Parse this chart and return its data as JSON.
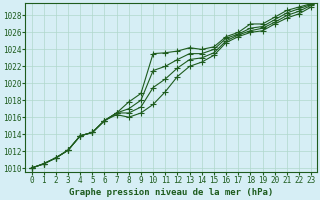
{
  "xlabel": "Graphe pression niveau de la mer (hPa)",
  "xlim": [
    -0.5,
    23.5
  ],
  "ylim": [
    1009.5,
    1029.5
  ],
  "yticks": [
    1010,
    1012,
    1014,
    1016,
    1018,
    1020,
    1022,
    1024,
    1026,
    1028
  ],
  "xticks": [
    0,
    1,
    2,
    3,
    4,
    5,
    6,
    7,
    8,
    9,
    10,
    11,
    12,
    13,
    14,
    15,
    16,
    17,
    18,
    19,
    20,
    21,
    22,
    23
  ],
  "background_color": "#d6eef5",
  "grid_color": "#b0d8cc",
  "line_color": "#1e5c1e",
  "series": [
    [
      1010.0,
      1010.5,
      1011.2,
      1012.1,
      1013.8,
      1014.2,
      1015.6,
      1016.5,
      1017.8,
      1018.8,
      1023.5,
      1023.6,
      1023.8,
      1024.2,
      1024.0,
      1024.3,
      1025.5,
      1026.0,
      1027.0,
      1027.0,
      1027.8,
      1028.6,
      1029.0,
      1029.4
    ],
    [
      1010.0,
      1010.5,
      1011.2,
      1012.1,
      1013.8,
      1014.2,
      1015.6,
      1016.5,
      1017.0,
      1018.0,
      1021.5,
      1022.0,
      1022.8,
      1023.5,
      1023.5,
      1024.0,
      1025.3,
      1025.8,
      1026.5,
      1026.7,
      1027.5,
      1028.3,
      1028.8,
      1029.3
    ],
    [
      1010.0,
      1010.5,
      1011.2,
      1012.1,
      1013.8,
      1014.2,
      1015.6,
      1016.5,
      1016.5,
      1017.2,
      1019.5,
      1020.5,
      1021.8,
      1022.8,
      1023.0,
      1023.6,
      1025.0,
      1025.7,
      1026.2,
      1026.5,
      1027.2,
      1028.0,
      1028.5,
      1029.2
    ],
    [
      1010.0,
      1010.5,
      1011.2,
      1012.1,
      1013.8,
      1014.2,
      1015.6,
      1016.3,
      1016.0,
      1016.5,
      1017.5,
      1019.0,
      1020.8,
      1022.0,
      1022.5,
      1023.3,
      1024.8,
      1025.5,
      1026.0,
      1026.2,
      1027.0,
      1027.7,
      1028.2,
      1029.0
    ]
  ],
  "marker": "+",
  "markersize": 4,
  "linewidth": 0.8,
  "tick_fontsize": 5.5,
  "xlabel_fontsize": 6.5
}
